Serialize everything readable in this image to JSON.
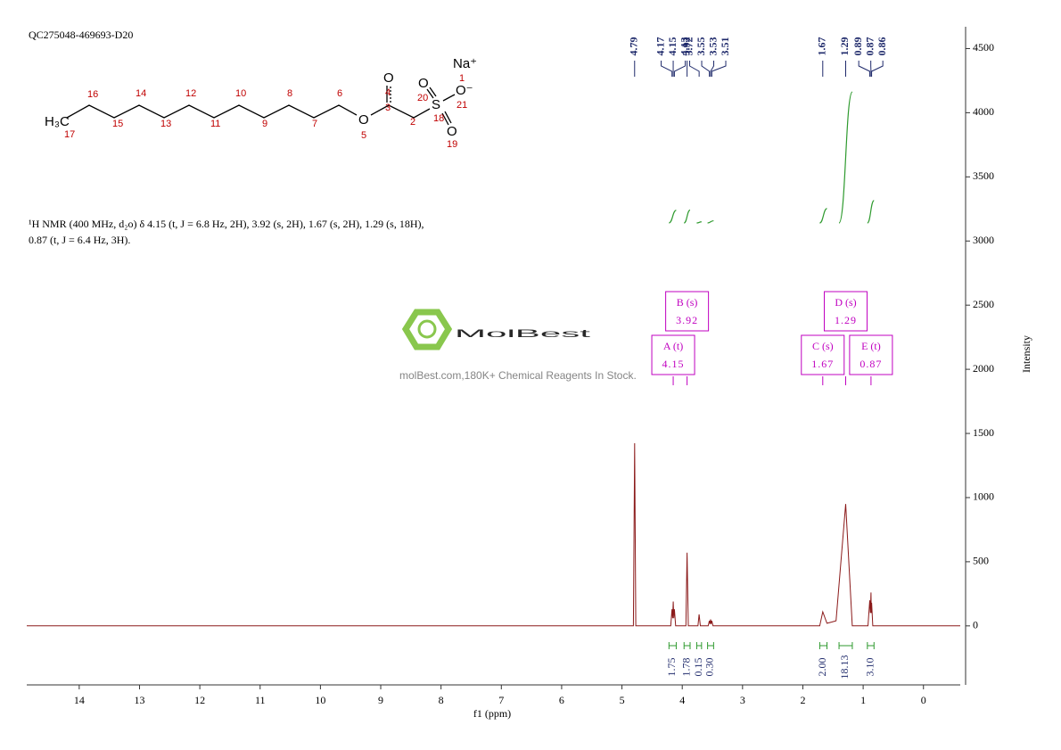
{
  "chart_data": {
    "type": "nmr",
    "sample_id": "QC275048-469693-D20",
    "description": [
      "¹H NMR (400 MHz, d₂o) δ 4.15 (t, J = 6.8 Hz, 2H), 3.92 (s, 2H), 1.67 (s, 2H), 1.29 (s, 18H),",
      "0.87 (t, J = 6.4 Hz, 3H)."
    ],
    "watermark": {
      "brand": "MolBest",
      "tagline": "molBest.com,180K+ Chemical Reagents In Stock."
    },
    "molecule": {
      "atoms": [
        "H₃C",
        "O",
        "O",
        "S",
        "O",
        "O⁻",
        "O",
        "Na⁺"
      ],
      "numbers": [
        "17",
        "16",
        "15",
        "14",
        "13",
        "12",
        "11",
        "10",
        "9",
        "8",
        "7",
        "6",
        "5",
        "4",
        "3",
        "2",
        "18",
        "20",
        "21",
        "19",
        "1"
      ]
    },
    "x_label": "f1 (ppm)",
    "y_label": "Intensity",
    "xlim": [
      14.87,
      -0.61
    ],
    "xticks": [
      14,
      13,
      12,
      11,
      10,
      9,
      8,
      7,
      6,
      5,
      4,
      3,
      2,
      1,
      0
    ],
    "ylim": [
      -460,
      4670
    ],
    "yticks": [
      0,
      500,
      1000,
      1500,
      2000,
      2500,
      3000,
      3500,
      4000,
      4500
    ],
    "peak_labels": [
      4.79,
      4.17,
      4.15,
      4.13,
      3.92,
      3.72,
      3.55,
      3.53,
      3.51,
      1.67,
      1.29,
      0.89,
      0.87,
      0.86
    ],
    "spectrum": {
      "color": "#8b1a1a",
      "x": [
        14.87,
        4.81,
        4.79,
        4.77,
        4.19,
        4.17,
        4.16,
        4.15,
        4.14,
        4.13,
        4.11,
        3.94,
        3.92,
        3.9,
        3.74,
        3.72,
        3.7,
        3.57,
        3.55,
        3.54,
        3.53,
        3.52,
        3.51,
        3.49,
        1.72,
        1.67,
        1.6,
        1.52,
        1.45,
        1.29,
        1.18,
        0.92,
        0.89,
        0.88,
        0.87,
        0.865,
        0.86,
        0.84,
        -0.61
      ],
      "values": [
        0,
        0,
        1424,
        0,
        0,
        130,
        60,
        190,
        60,
        130,
        0,
        0,
        570,
        0,
        0,
        90,
        0,
        0,
        40,
        15,
        50,
        15,
        40,
        0,
        0,
        110,
        20,
        30,
        40,
        950,
        0,
        0,
        200,
        100,
        260,
        100,
        180,
        0,
        0
      ]
    },
    "integrals": {
      "color": "#2e9a2e",
      "from": [
        4.22,
        3.97,
        3.76,
        3.58,
        1.72,
        1.4,
        0.93
      ],
      "to": [
        4.1,
        3.87,
        3.68,
        3.48,
        1.6,
        1.18,
        0.82
      ],
      "values": [
        1.75,
        1.78,
        0.15,
        0.3,
        2,
        18.13,
        3.1
      ],
      "value_labels": [
        "1.75",
        "1.78",
        "0.15",
        "0.30",
        "2.00",
        "18.13",
        "3.10"
      ]
    },
    "multiplets": [
      {
        "label": "A (t)",
        "shift": 4.15
      },
      {
        "label": "B (s)",
        "shift": 3.92
      },
      {
        "label": "C (s)",
        "shift": 1.67
      },
      {
        "label": "D (s)",
        "shift": 1.29
      },
      {
        "label": "E (t)",
        "shift": 0.87
      }
    ]
  }
}
